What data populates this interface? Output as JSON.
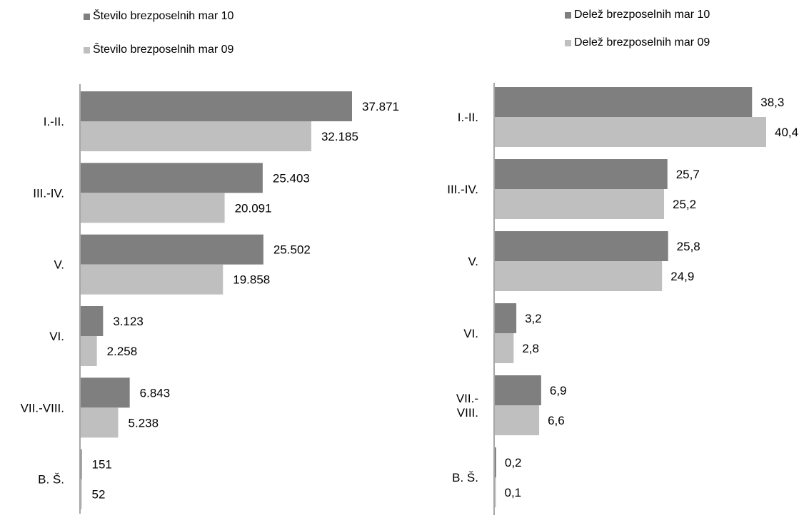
{
  "colors": {
    "dark": "#7f7f7f",
    "light": "#bfbfbf",
    "axis": "#888888"
  },
  "chart_data": [
    {
      "type": "bar",
      "orientation": "horizontal",
      "categories": [
        "I.-II.",
        "III.-IV.",
        "V.",
        "VI.",
        "VII.-VIII.",
        "B. Š."
      ],
      "category_label_lines": [
        [
          "I.-II."
        ],
        [
          "III.-IV."
        ],
        [
          "V."
        ],
        [
          "VI."
        ],
        [
          "VII.-VIII."
        ],
        [
          "B. Š."
        ]
      ],
      "series": [
        {
          "name": "Število brezposelnih mar 10",
          "values": [
            37871,
            25403,
            25502,
            3123,
            6843,
            151
          ],
          "labels": [
            "37.871",
            "25.403",
            "25.502",
            "3.123",
            "6.843",
            "151"
          ]
        },
        {
          "name": "Število brezposelnih mar 09",
          "values": [
            32185,
            20091,
            19858,
            2258,
            5238,
            52
          ],
          "labels": [
            "32.185",
            "20.091",
            "19.858",
            "2.258",
            "5.238",
            "52"
          ]
        }
      ],
      "xlim": [
        0,
        45000
      ],
      "legend": "top-left",
      "grid": false
    },
    {
      "type": "bar",
      "orientation": "horizontal",
      "categories": [
        "I.-II.",
        "III.-IV.",
        "V.",
        "VI.",
        "VII.-VIII.",
        "B. Š."
      ],
      "category_label_lines": [
        [
          "I.-II."
        ],
        [
          "III.-IV."
        ],
        [
          "V."
        ],
        [
          "VI."
        ],
        [
          "VII.-",
          "VIII."
        ],
        [
          "B. Š."
        ]
      ],
      "series": [
        {
          "name": "Delež brezposelnih mar 10",
          "values": [
            38.3,
            25.7,
            25.8,
            3.2,
            6.9,
            0.2
          ],
          "labels": [
            "38,3",
            "25,7",
            "25,8",
            "3,2",
            "6,9",
            "0,2"
          ]
        },
        {
          "name": "Delež brezposelnih mar 09",
          "values": [
            40.4,
            25.2,
            24.9,
            2.8,
            6.6,
            0.1
          ],
          "labels": [
            "40,4",
            "25,2",
            "24,9",
            "2,8",
            "6,6",
            "0,1"
          ]
        }
      ],
      "xlim": [
        0,
        45
      ],
      "legend": "top-right",
      "grid": false
    }
  ]
}
